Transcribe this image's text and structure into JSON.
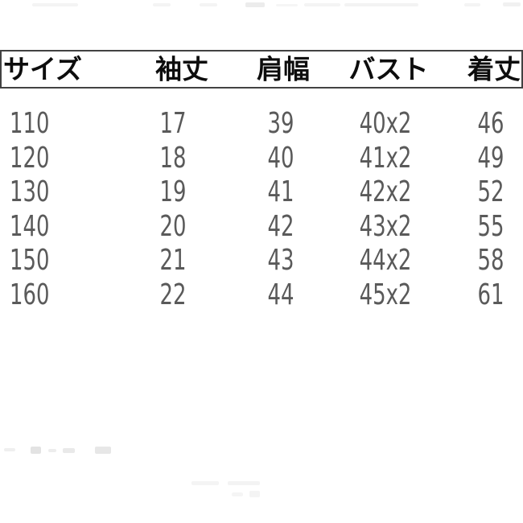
{
  "table": {
    "columns": [
      "サイズ",
      "袖丈",
      "肩幅",
      "バスト",
      "着丈"
    ],
    "rows": [
      [
        "110",
        "17",
        "39",
        "40x2",
        "46"
      ],
      [
        "120",
        "18",
        "40",
        "41x2",
        "49"
      ],
      [
        "130",
        "19",
        "41",
        "42x2",
        "52"
      ],
      [
        "140",
        "20",
        "42",
        "43x2",
        "55"
      ],
      [
        "150",
        "21",
        "43",
        "44x2",
        "58"
      ],
      [
        "160",
        "22",
        "44",
        "45x2",
        "61"
      ]
    ]
  },
  "colors": {
    "background": "#ffffff",
    "header_text": "#0d0d0d",
    "header_border": "#424242",
    "body_text": "#5a5a5a"
  }
}
